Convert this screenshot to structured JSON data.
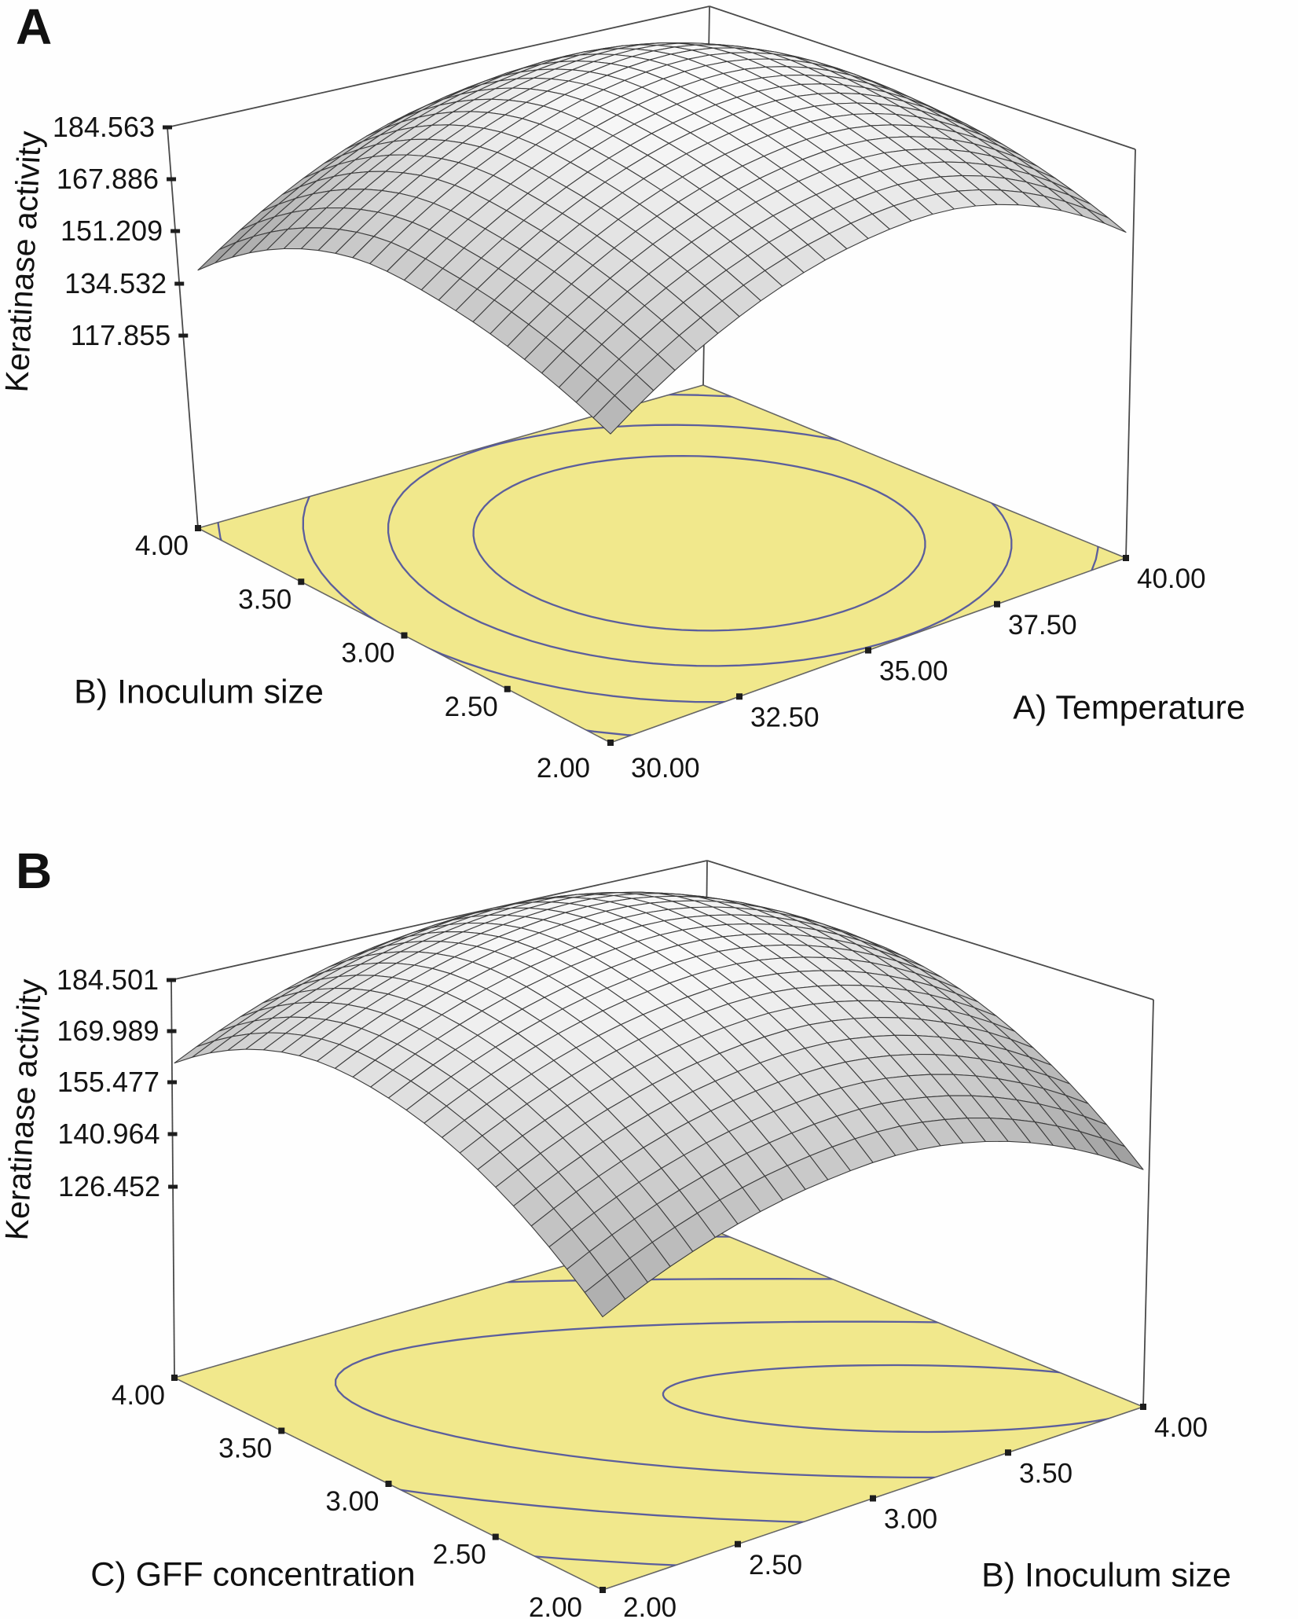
{
  "figure": {
    "background": "#ffffff"
  },
  "panels": [
    {
      "letter": "A",
      "z_axis": {
        "title": "Keratinase activity",
        "ticks": [
          "117.855",
          "134.532",
          "151.209",
          "167.886",
          "184.563"
        ]
      },
      "left_axis": {
        "title": "B) Inoculum size",
        "ticks": [
          "2.00",
          "2.50",
          "3.00",
          "3.50",
          "4.00"
        ]
      },
      "right_axis": {
        "title": "A) Temperature",
        "ticks": [
          "30.00",
          "32.50",
          "35.00",
          "37.50",
          "40.00"
        ]
      },
      "colors": {
        "floor": "#f1e88c",
        "contour": "#4a4f9e",
        "frame": "#4a4a4a",
        "mesh_line": "#3c3c3c",
        "mesh_low": "#999999",
        "mesh_high": "#fbfbfb",
        "tick_marker": "#1d1d1d"
      }
    },
    {
      "letter": "B",
      "z_axis": {
        "title": "Keratinase activity",
        "ticks": [
          "126.452",
          "140.964",
          "155.477",
          "169.989",
          "184.501"
        ]
      },
      "left_axis": {
        "title": "C) GFF concentration",
        "ticks": [
          "2.00",
          "2.50",
          "3.00",
          "3.50",
          "4.00"
        ]
      },
      "right_axis": {
        "title": "B) Inoculum size",
        "ticks": [
          "2.00",
          "2.50",
          "3.00",
          "3.50",
          "4.00"
        ]
      },
      "colors": {
        "floor": "#f1e88c",
        "contour": "#4a4f9e",
        "frame": "#4a4a4a",
        "mesh_line": "#3c3c3c",
        "mesh_low": "#999999",
        "mesh_high": "#fbfbfb",
        "tick_marker": "#1d1d1d"
      }
    }
  ],
  "chart_data": [
    {
      "type": "surface3d",
      "panel": "A",
      "zlabel": "Keratinase activity",
      "xlabel": "A) Temperature",
      "ylabel": "B) Inoculum size",
      "x_range": [
        30.0,
        40.0
      ],
      "y_range": [
        2.0,
        4.0
      ],
      "z_range": [
        117.855,
        184.563
      ],
      "x_ticks": [
        30.0,
        32.5,
        35.0,
        37.5,
        40.0
      ],
      "y_ticks": [
        2.0,
        2.5,
        3.0,
        3.5,
        4.0
      ],
      "z_ticks": [
        117.855,
        134.532,
        151.209,
        167.886,
        184.563
      ],
      "surface_max": 184.563,
      "surface_min": 117.855,
      "max_location_estimate": {
        "temperature": 35.7,
        "inoculum_size": 3.1
      },
      "min_location": {
        "temperature": 30.0,
        "inoculum_size": 2.0
      },
      "corner_values_estimate": {
        "t30_i2": 117.855,
        "t40_i2": 157,
        "t30_i4": 146,
        "t40_i4": 163
      },
      "floor": "yellow contour plane with nested elliptical contours centered near the optimum",
      "grid": "quadrilateral mesh, 24 x 24",
      "legend_position": "none"
    },
    {
      "type": "surface3d",
      "panel": "B",
      "zlabel": "Keratinase activity",
      "xlabel": "B) Inoculum size",
      "ylabel": "C) GFF concentration",
      "x_range": [
        2.0,
        4.0
      ],
      "y_range": [
        2.0,
        4.0
      ],
      "z_range": [
        126.452,
        184.501
      ],
      "x_ticks": [
        2.0,
        2.5,
        3.0,
        3.5,
        4.0
      ],
      "y_ticks": [
        2.0,
        2.5,
        3.0,
        3.5,
        4.0
      ],
      "z_ticks": [
        126.452,
        140.964,
        155.477,
        169.989,
        184.501
      ],
      "surface_max": 184.501,
      "surface_min": 126.452,
      "max_location_estimate": {
        "inoculum_size": 3.3,
        "gff_concentration": 3.0
      },
      "min_location": {
        "inoculum_size": 2.0,
        "gff_concentration": 2.0
      },
      "floor": "yellow contour plane with rotated elliptical contour bands sweeping from upper-left to lower-right",
      "grid": "quadrilateral mesh, 24 x 24",
      "legend_position": "none"
    }
  ]
}
